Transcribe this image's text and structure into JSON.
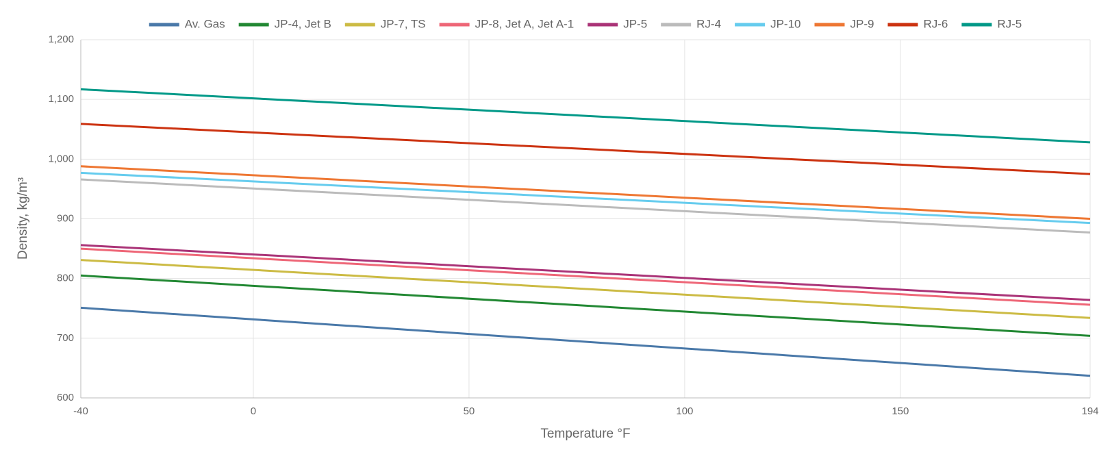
{
  "chart_data": {
    "type": "line",
    "x_label": "Temperature °F",
    "y_label": "Density, kg/m³",
    "x": [
      -40,
      194
    ],
    "xlim": [
      -40,
      194
    ],
    "xticks": [
      -40,
      0,
      50,
      100,
      150,
      194
    ],
    "ylim": [
      600,
      1200
    ],
    "yticks": [
      600,
      700,
      800,
      900,
      {
        "value": 1000,
        "label": "1,000"
      },
      {
        "value": 1100,
        "label": "1,100"
      },
      {
        "value": 1200,
        "label": "1,200"
      }
    ],
    "grid": true,
    "legend": "top",
    "series": [
      {
        "name": "Av. Gas",
        "color": "#4a79a9",
        "values": [
          751,
          637
        ]
      },
      {
        "name": "JP-4, Jet B",
        "color": "#228833",
        "values": [
          805,
          704
        ]
      },
      {
        "name": "JP-7, TS",
        "color": "#ccbb44",
        "values": [
          831,
          734
        ]
      },
      {
        "name": "JP-8, Jet A, Jet A-1",
        "color": "#ee6677",
        "values": [
          850,
          756
        ]
      },
      {
        "name": "JP-5",
        "color": "#aa3377",
        "values": [
          856,
          764
        ]
      },
      {
        "name": "RJ-4",
        "color": "#bbbbbb",
        "values": [
          966,
          877
        ]
      },
      {
        "name": "JP-10",
        "color": "#66ccee",
        "values": [
          977,
          893
        ]
      },
      {
        "name": "JP-9",
        "color": "#ee7733",
        "values": [
          988,
          900
        ]
      },
      {
        "name": "RJ-6",
        "color": "#cc3311",
        "values": [
          1059,
          975
        ]
      },
      {
        "name": "RJ-5",
        "color": "#009988",
        "values": [
          1117,
          1028
        ]
      }
    ]
  }
}
